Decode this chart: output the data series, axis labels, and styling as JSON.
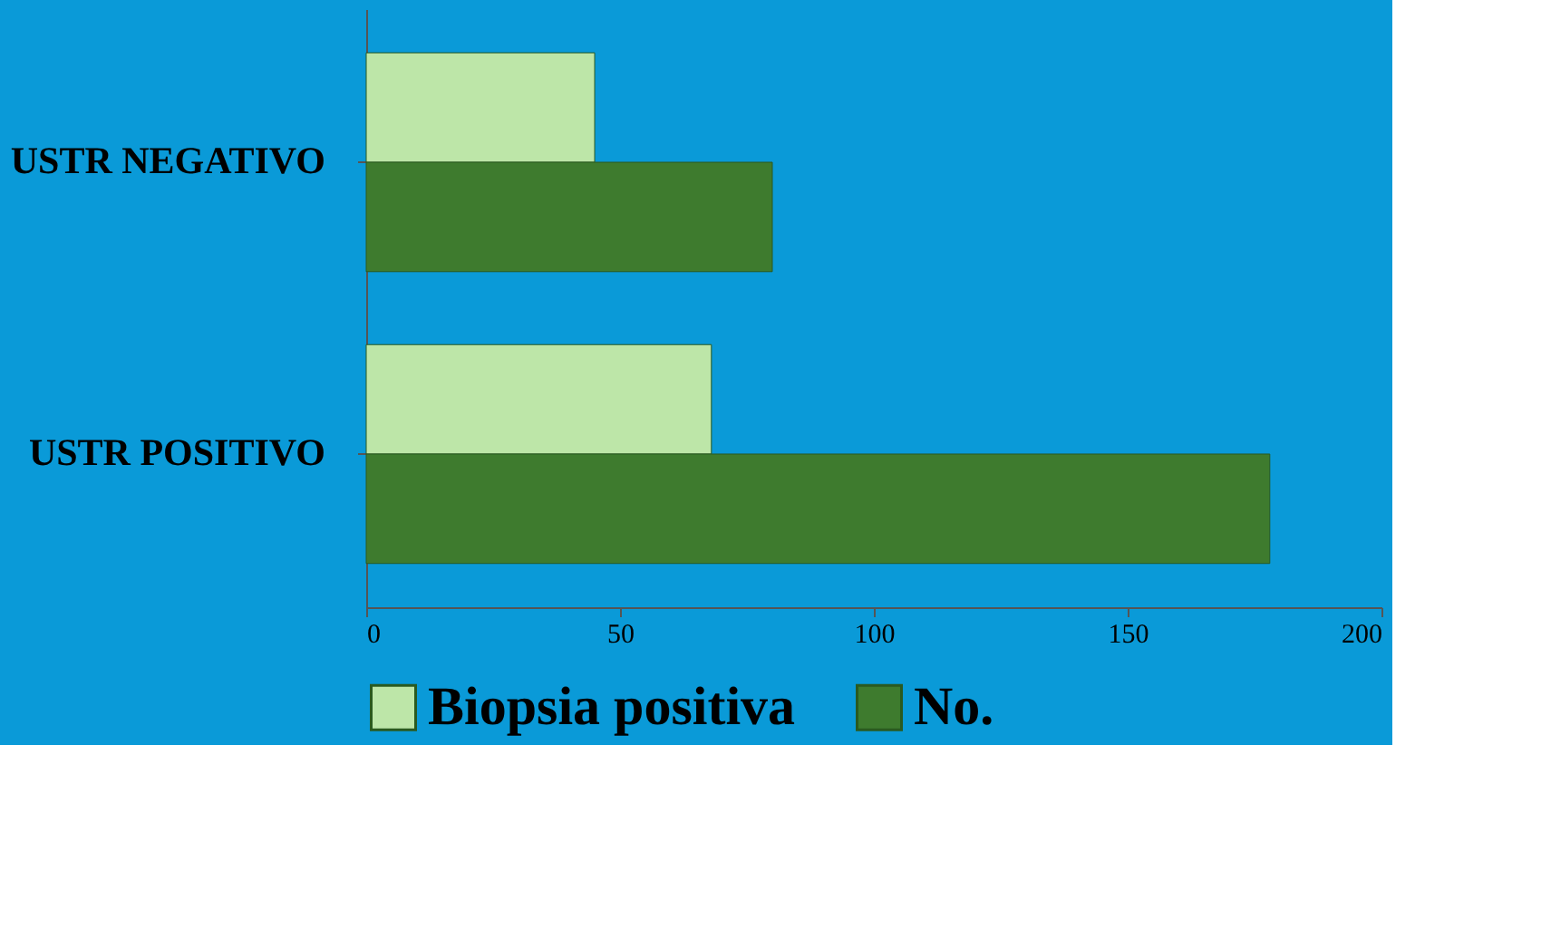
{
  "chart_data": {
    "type": "bar",
    "orientation": "horizontal",
    "categories": [
      "USTR NEGATIVO",
      "USTR POSITIVO"
    ],
    "series": [
      {
        "name": "Biopsia positiva",
        "color": "#bde6a8",
        "values": [
          45,
          68
        ]
      },
      {
        "name": "No.",
        "color": "#3e7b2e",
        "values": [
          80,
          178
        ]
      }
    ],
    "xlim": [
      0,
      200
    ],
    "xticks": [
      0,
      50,
      100,
      150,
      200
    ],
    "grid": false,
    "legend": "bottom"
  }
}
